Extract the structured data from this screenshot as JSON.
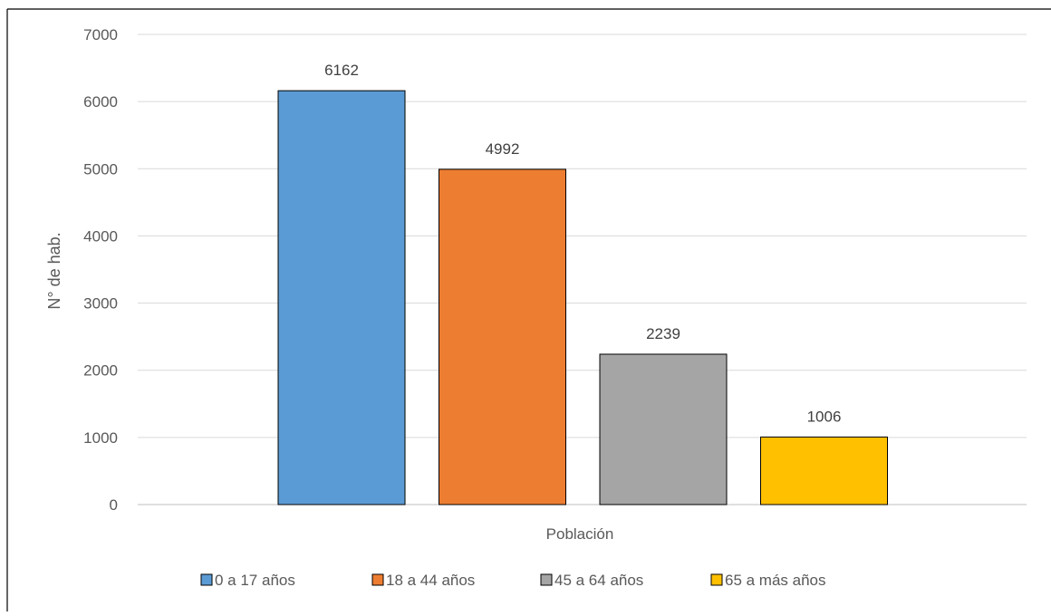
{
  "chart_data": {
    "type": "bar",
    "title": "",
    "xlabel": "Población",
    "ylabel": "N° de hab.",
    "ylim": [
      0,
      7000
    ],
    "yticks": [
      "0",
      "1000",
      "2000",
      "3000",
      "4000",
      "5000",
      "6000",
      "7000"
    ],
    "grid": true,
    "legend_position": "bottom",
    "series": [
      {
        "name": "0 a 17 años",
        "value": 6162,
        "label": "6162",
        "color": "#5B9BD5"
      },
      {
        "name": "18 a 44 años",
        "value": 4992,
        "label": "4992",
        "color": "#ED7D31"
      },
      {
        "name": "45 a 64 años",
        "value": 2239,
        "label": "2239",
        "color": "#A5A5A5"
      },
      {
        "name": "65 a más años",
        "value": 1006,
        "label": "1006",
        "color": "#FFC000"
      }
    ]
  }
}
